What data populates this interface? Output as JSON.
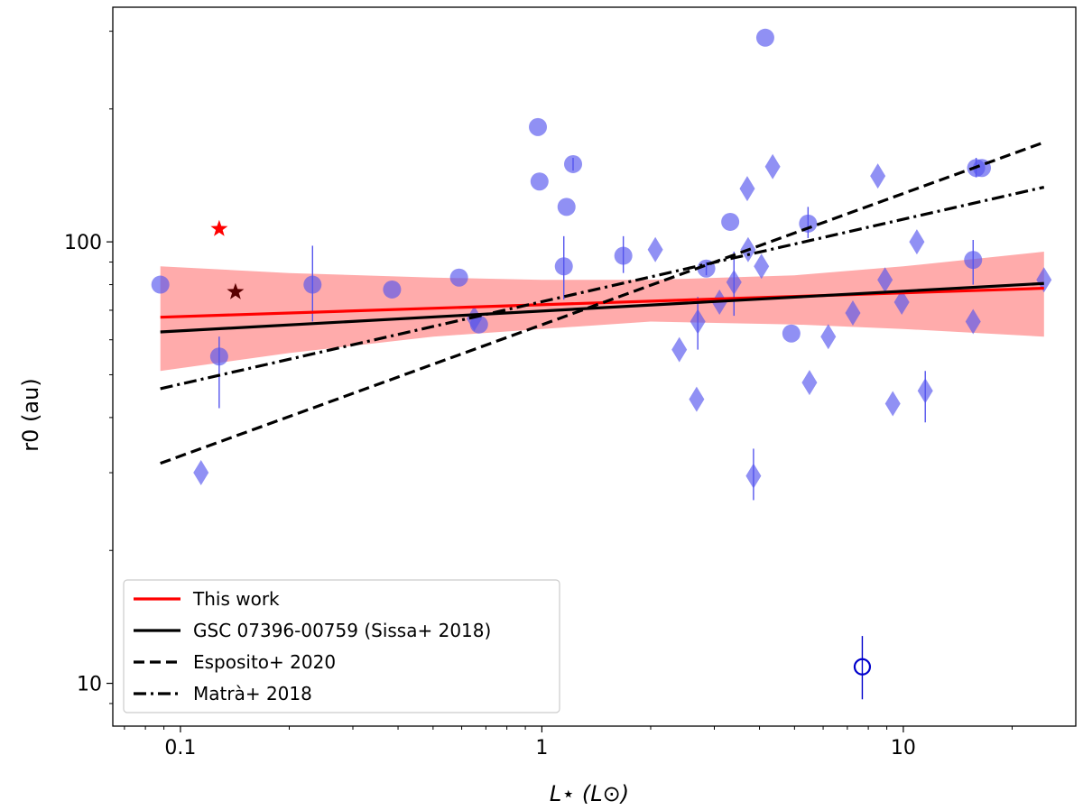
{
  "chart_data": {
    "type": "scatter",
    "xscale": "log",
    "yscale": "log",
    "xlim": [
      0.065,
      30
    ],
    "ylim": [
      8.0,
      340
    ],
    "xlabel": "L⋆ (L⊙)",
    "ylabel": "r0 (au)",
    "xticks": [
      {
        "value": 0.1,
        "label": "0.1"
      },
      {
        "value": 1,
        "label": "1"
      },
      {
        "value": 10,
        "label": "10"
      }
    ],
    "yticks": [
      {
        "value": 10,
        "label": "10"
      },
      {
        "value": 100,
        "label": "100"
      }
    ],
    "legend": {
      "placement": "lower-left",
      "entries": [
        {
          "label": "This work",
          "style": "solid",
          "color": "#ff0000"
        },
        {
          "label": "GSC 07396-00759 (Sissa+ 2018)",
          "style": "solid",
          "color": "#000000"
        },
        {
          "label": "Esposito+ 2020",
          "style": "dashed",
          "color": "#000000"
        },
        {
          "label": "Matrà+ 2018",
          "style": "dashdot",
          "color": "#000000"
        }
      ]
    },
    "colors": {
      "points": "#5555ee",
      "this_work": "#ff0000",
      "band": "#ff8888",
      "star_red": "#ff0000",
      "star_dark": "#5a0000",
      "open_circle": "#0000cc"
    },
    "fit_lines": [
      {
        "name": "This work",
        "style": "solid",
        "color": "#ff0000",
        "x": [
          0.088,
          24.5
        ],
        "y": [
          67.5,
          78.5
        ]
      },
      {
        "name": "GSC 07396-00759 (Sissa+ 2018)",
        "style": "solid",
        "color": "#000000",
        "x": [
          0.088,
          24.5
        ],
        "y": [
          62.5,
          80.5
        ]
      },
      {
        "name": "Esposito+ 2020",
        "style": "dashed",
        "color": "#000000",
        "x": [
          0.088,
          24.5
        ],
        "y": [
          31.5,
          168
        ]
      },
      {
        "name": "Matrà+ 2018",
        "style": "dashdot",
        "color": "#000000",
        "x": [
          0.088,
          24.5
        ],
        "y": [
          46.5,
          133
        ]
      }
    ],
    "band": {
      "x": [
        0.088,
        0.2,
        0.5,
        1,
        2,
        5,
        10,
        24.5
      ],
      "upper": [
        88,
        85,
        83,
        82,
        82,
        84,
        88,
        95
      ],
      "lower": [
        51,
        56,
        61,
        63.5,
        66,
        65,
        63.5,
        61
      ]
    },
    "series": [
      {
        "name": "circles",
        "marker": "circle",
        "points": [
          {
            "x": 0.088,
            "y": 80,
            "err": [
              80,
              80
            ]
          },
          {
            "x": 0.128,
            "y": 55,
            "err": [
              42,
              61
            ]
          },
          {
            "x": 0.232,
            "y": 80,
            "err": [
              66,
              98
            ]
          },
          {
            "x": 0.385,
            "y": 78,
            "err": [
              78,
              78
            ]
          },
          {
            "x": 0.59,
            "y": 83,
            "err": [
              83,
              83
            ]
          },
          {
            "x": 0.67,
            "y": 65,
            "err": [
              65,
              65
            ]
          },
          {
            "x": 0.975,
            "y": 182,
            "err": [
              182,
              182
            ]
          },
          {
            "x": 0.985,
            "y": 137,
            "err": [
              137,
              137
            ]
          },
          {
            "x": 1.15,
            "y": 88,
            "err": [
              74,
              103
            ]
          },
          {
            "x": 1.17,
            "y": 120,
            "err": [
              120,
              120
            ]
          },
          {
            "x": 1.22,
            "y": 150,
            "err": [
              145,
              155
            ]
          },
          {
            "x": 1.68,
            "y": 93,
            "err": [
              85,
              103
            ]
          },
          {
            "x": 2.85,
            "y": 87,
            "err": [
              84,
              90
            ]
          },
          {
            "x": 3.32,
            "y": 111,
            "err": [
              111,
              111
            ]
          },
          {
            "x": 4.15,
            "y": 290,
            "err": [
              290,
              290
            ]
          },
          {
            "x": 4.9,
            "y": 62,
            "err": [
              62,
              62
            ]
          },
          {
            "x": 5.45,
            "y": 110,
            "err": [
              102,
              120
            ]
          },
          {
            "x": 15.6,
            "y": 91,
            "err": [
              80,
              101
            ]
          },
          {
            "x": 15.9,
            "y": 147,
            "err": [
              140,
              155
            ]
          },
          {
            "x": 16.5,
            "y": 147,
            "err": [
              147,
              147
            ]
          }
        ]
      },
      {
        "name": "diamonds",
        "marker": "diamond",
        "points": [
          {
            "x": 0.114,
            "y": 30,
            "err": [
              30,
              30
            ]
          },
          {
            "x": 0.65,
            "y": 67,
            "err": [
              67,
              67
            ]
          },
          {
            "x": 2.06,
            "y": 96,
            "err": [
              96,
              96
            ]
          },
          {
            "x": 2.4,
            "y": 57,
            "err": [
              57,
              57
            ]
          },
          {
            "x": 2.68,
            "y": 44,
            "err": [
              44,
              44
            ]
          },
          {
            "x": 2.7,
            "y": 66,
            "err": [
              57,
              75
            ]
          },
          {
            "x": 3.1,
            "y": 73,
            "err": [
              73,
              73
            ]
          },
          {
            "x": 3.4,
            "y": 81,
            "err": [
              68,
              95
            ]
          },
          {
            "x": 3.7,
            "y": 132,
            "err": [
              132,
              132
            ]
          },
          {
            "x": 3.72,
            "y": 96,
            "err": [
              96,
              96
            ]
          },
          {
            "x": 3.85,
            "y": 29.5,
            "err": [
              26,
              34
            ]
          },
          {
            "x": 4.05,
            "y": 88,
            "err": [
              88,
              88
            ]
          },
          {
            "x": 4.35,
            "y": 148,
            "err": [
              148,
              148
            ]
          },
          {
            "x": 5.5,
            "y": 48,
            "err": [
              48,
              48
            ]
          },
          {
            "x": 6.2,
            "y": 61,
            "err": [
              61,
              61
            ]
          },
          {
            "x": 7.25,
            "y": 69,
            "err": [
              69,
              69
            ]
          },
          {
            "x": 8.5,
            "y": 141,
            "err": [
              141,
              141
            ]
          },
          {
            "x": 8.9,
            "y": 82,
            "err": [
              82,
              82
            ]
          },
          {
            "x": 9.35,
            "y": 43,
            "err": [
              43,
              43
            ]
          },
          {
            "x": 9.9,
            "y": 73,
            "err": [
              73,
              73
            ]
          },
          {
            "x": 10.9,
            "y": 100,
            "err": [
              100,
              100
            ]
          },
          {
            "x": 11.5,
            "y": 46,
            "err": [
              39,
              51
            ]
          },
          {
            "x": 15.6,
            "y": 66,
            "err": [
              66,
              66
            ]
          },
          {
            "x": 24.5,
            "y": 82,
            "err": [
              82,
              82
            ]
          }
        ]
      },
      {
        "name": "stars",
        "marker": "star",
        "points": [
          {
            "x": 0.128,
            "y": 107,
            "color": "#ff0000"
          },
          {
            "x": 0.142,
            "y": 77,
            "color": "#5a0000"
          }
        ]
      },
      {
        "name": "open-circle",
        "marker": "open-circle",
        "points": [
          {
            "x": 7.7,
            "y": 10.9,
            "err": [
              9.2,
              12.8
            ]
          }
        ]
      }
    ]
  }
}
